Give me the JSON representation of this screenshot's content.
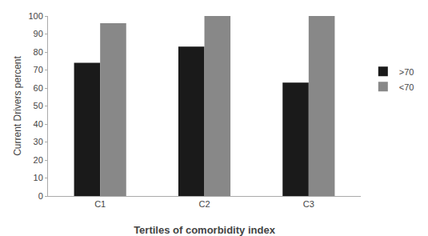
{
  "chart_data": {
    "type": "bar",
    "categories": [
      "C1",
      "C2",
      "C3"
    ],
    "series": [
      {
        "name": ">70",
        "color": "#1a1a1a",
        "values": [
          74,
          83,
          63
        ]
      },
      {
        "name": "<70",
        "color": "#888888",
        "values": [
          96,
          100,
          100
        ]
      }
    ],
    "xlabel": "Tertiles of comorbidity index",
    "ylabel": "Current Drivers percent",
    "ylim": [
      0,
      100
    ],
    "yticks": [
      0,
      10,
      20,
      30,
      40,
      50,
      60,
      70,
      80,
      90,
      100
    ],
    "grid": false,
    "legend": "right"
  }
}
